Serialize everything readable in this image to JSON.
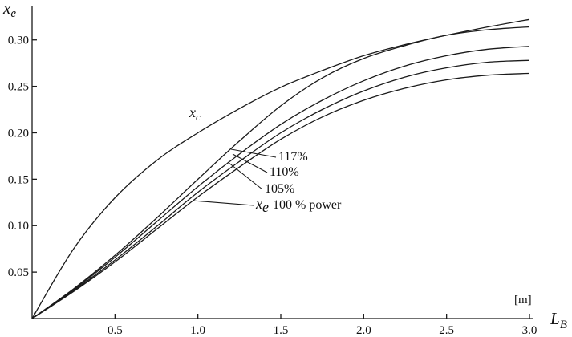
{
  "chart_data": {
    "type": "line",
    "x_axis": {
      "label": "L",
      "label_subscript": "B",
      "unit": "[m]",
      "range": [
        0,
        3.0
      ],
      "ticks": [
        0.5,
        1.0,
        1.5,
        2.0,
        2.5,
        3.0
      ],
      "tick_labels": [
        "0.5",
        "1.0",
        "1.5",
        "2.0",
        "2.5",
        "3.0"
      ]
    },
    "y_axis": {
      "label": "x",
      "label_subscript": "e",
      "range": [
        0,
        0.33
      ],
      "ticks": [
        0.05,
        0.1,
        0.15,
        0.2,
        0.25,
        0.3
      ],
      "tick_labels": [
        "0.05",
        "0.10",
        "0.15",
        "0.20",
        "0.25",
        "0.30"
      ]
    },
    "grid": false,
    "x": [
      0,
      0.25,
      0.5,
      0.75,
      1.0,
      1.25,
      1.5,
      1.75,
      2.0,
      2.25,
      2.5,
      2.75,
      3.0
    ],
    "series": [
      {
        "name": "x_c",
        "label_main": "x",
        "label_sub": "c",
        "values": [
          0.0,
          0.075,
          0.13,
          0.17,
          0.2,
          0.226,
          0.249,
          0.267,
          0.283,
          0.295,
          0.305,
          0.314,
          0.322
        ]
      },
      {
        "name": "117%",
        "label_main": "117%",
        "values": [
          0.0,
          0.032,
          0.068,
          0.108,
          0.15,
          0.191,
          0.229,
          0.259,
          0.28,
          0.294,
          0.305,
          0.311,
          0.314
        ]
      },
      {
        "name": "110%",
        "label_main": "110%",
        "values": [
          0.0,
          0.031,
          0.066,
          0.104,
          0.142,
          0.177,
          0.209,
          0.235,
          0.256,
          0.272,
          0.283,
          0.29,
          0.293
        ]
      },
      {
        "name": "105%",
        "label_main": "105%",
        "values": [
          0.0,
          0.03,
          0.063,
          0.099,
          0.136,
          0.169,
          0.2,
          0.225,
          0.245,
          0.26,
          0.27,
          0.276,
          0.278
        ]
      },
      {
        "name": "x_e 100 % power",
        "label_main": "x",
        "label_sub": "e",
        "label_suffix": "100 % power",
        "values": [
          0.0,
          0.029,
          0.061,
          0.096,
          0.131,
          0.163,
          0.193,
          0.217,
          0.235,
          0.248,
          0.257,
          0.262,
          0.264
        ]
      }
    ]
  }
}
